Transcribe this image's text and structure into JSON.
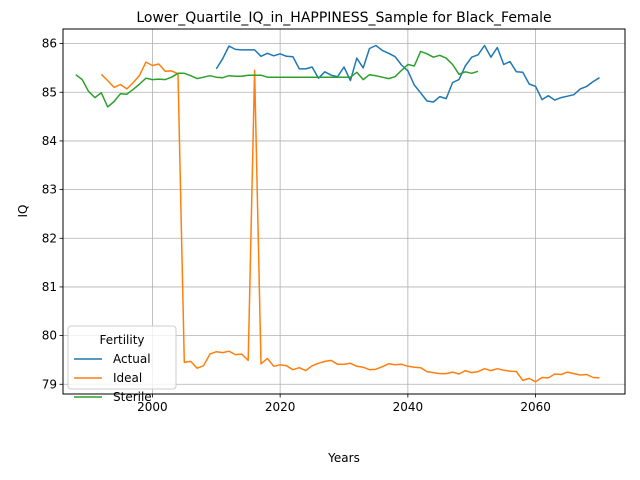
{
  "chart_data": {
    "type": "line",
    "title": "Lower_Quartile_IQ_in_HAPPINESS_Sample for Black_Female",
    "xlabel": "Years",
    "ylabel": "IQ",
    "xlim": [
      1986,
      2074
    ],
    "ylim": [
      78.8,
      86.3
    ],
    "xticks": [
      2000,
      2020,
      2040,
      2060
    ],
    "yticks": [
      79,
      80,
      81,
      82,
      83,
      84,
      85,
      86
    ],
    "grid": true,
    "legend": {
      "title": "Fertility",
      "position": "lower-left"
    },
    "series": [
      {
        "name": "Actual",
        "color": "#1f77b4",
        "x": [
          2010,
          2011,
          2012,
          2013,
          2014,
          2015,
          2016,
          2017,
          2018,
          2019,
          2020,
          2021,
          2022,
          2023,
          2024,
          2025,
          2026,
          2027,
          2028,
          2029,
          2030,
          2031,
          2032,
          2033,
          2034,
          2035,
          2036,
          2037,
          2038,
          2039,
          2040,
          2041,
          2042,
          2043,
          2044,
          2045,
          2046,
          2047,
          2048,
          2049,
          2050,
          2051,
          2052,
          2053,
          2054,
          2055,
          2056,
          2057,
          2058,
          2059,
          2060,
          2061,
          2062,
          2063,
          2064,
          2065,
          2066,
          2067,
          2068,
          2069,
          2070
        ],
        "y": [
          85.48,
          85.69,
          85.95,
          85.88,
          85.87,
          85.87,
          85.87,
          85.74,
          85.8,
          85.75,
          85.79,
          85.74,
          85.73,
          85.48,
          85.48,
          85.52,
          85.29,
          85.42,
          85.35,
          85.32,
          85.52,
          85.24,
          85.7,
          85.5,
          85.9,
          85.96,
          85.86,
          85.8,
          85.73,
          85.56,
          85.44,
          85.15,
          84.99,
          84.82,
          84.8,
          84.91,
          84.87,
          85.2,
          85.26,
          85.54,
          85.72,
          85.77,
          85.96,
          85.72,
          85.92,
          85.57,
          85.63,
          85.42,
          85.41,
          85.17,
          85.12,
          84.85,
          84.93,
          84.84,
          84.89,
          84.92,
          84.95,
          85.07,
          85.12,
          85.22,
          85.3
        ]
      },
      {
        "name": "Ideal",
        "color": "#ff7f0e",
        "x": [
          1992,
          1993,
          1994,
          1995,
          1996,
          1997,
          1998,
          1999,
          2000,
          2001,
          2002,
          2003,
          2004,
          2005,
          2006,
          2007,
          2008,
          2009,
          2010,
          2011,
          2012,
          2013,
          2014,
          2015,
          2016,
          2017,
          2018,
          2019,
          2020,
          2021,
          2022,
          2023,
          2024,
          2025,
          2026,
          2027,
          2028,
          2029,
          2030,
          2031,
          2032,
          2033,
          2034,
          2035,
          2036,
          2037,
          2038,
          2039,
          2040,
          2041,
          2042,
          2043,
          2044,
          2045,
          2046,
          2047,
          2048,
          2049,
          2050,
          2051,
          2052,
          2053,
          2054,
          2055,
          2056,
          2057,
          2058,
          2059,
          2060,
          2061,
          2062,
          2063,
          2064,
          2065,
          2066,
          2067,
          2068,
          2069,
          2070
        ],
        "y": [
          85.37,
          85.24,
          85.1,
          85.16,
          85.07,
          85.2,
          85.35,
          85.62,
          85.55,
          85.58,
          85.43,
          85.44,
          85.38,
          79.45,
          79.47,
          79.33,
          79.38,
          79.62,
          79.67,
          79.65,
          79.68,
          79.61,
          79.62,
          79.49,
          85.45,
          79.42,
          79.53,
          79.37,
          79.4,
          79.38,
          79.3,
          79.34,
          79.28,
          79.38,
          79.43,
          79.47,
          79.49,
          79.41,
          79.41,
          79.43,
          79.37,
          79.35,
          79.3,
          79.31,
          79.36,
          79.42,
          79.4,
          79.41,
          79.37,
          79.35,
          79.34,
          79.26,
          79.24,
          79.22,
          79.22,
          79.25,
          79.21,
          79.28,
          79.24,
          79.26,
          79.32,
          79.28,
          79.32,
          79.29,
          79.27,
          79.26,
          79.08,
          79.12,
          79.05,
          79.14,
          79.13,
          79.21,
          79.2,
          79.25,
          79.22,
          79.19,
          79.2,
          79.14,
          79.13
        ]
      },
      {
        "name": "Sterile",
        "color": "#2ca02c",
        "x": [
          1988,
          1989,
          1990,
          1991,
          1992,
          1993,
          1994,
          1995,
          1996,
          1997,
          1998,
          1999,
          2000,
          2001,
          2002,
          2003,
          2004,
          2005,
          2006,
          2007,
          2008,
          2009,
          2010,
          2011,
          2012,
          2013,
          2014,
          2015,
          2016,
          2017,
          2018,
          2019,
          2020,
          2021,
          2022,
          2023,
          2024,
          2025,
          2026,
          2027,
          2028,
          2029,
          2030,
          2031,
          2032,
          2033,
          2034,
          2035,
          2036,
          2037,
          2038,
          2039,
          2040,
          2041,
          2042,
          2043,
          2044,
          2045,
          2046,
          2047,
          2048,
          2049,
          2050,
          2051
        ],
        "y": [
          85.36,
          85.26,
          85.02,
          84.89,
          84.99,
          84.7,
          84.81,
          84.97,
          84.96,
          85.06,
          85.17,
          85.29,
          85.26,
          85.27,
          85.26,
          85.31,
          85.39,
          85.39,
          85.34,
          85.28,
          85.31,
          85.34,
          85.31,
          85.3,
          85.34,
          85.33,
          85.33,
          85.35,
          85.35,
          85.35,
          85.31,
          85.31,
          85.31,
          85.31,
          85.31,
          85.31,
          85.31,
          85.31,
          85.31,
          85.31,
          85.31,
          85.31,
          85.31,
          85.31,
          85.41,
          85.26,
          85.36,
          85.34,
          85.31,
          85.28,
          85.32,
          85.45,
          85.57,
          85.54,
          85.84,
          85.79,
          85.72,
          85.76,
          85.7,
          85.57,
          85.37,
          85.42,
          85.39,
          85.43
        ]
      }
    ]
  }
}
